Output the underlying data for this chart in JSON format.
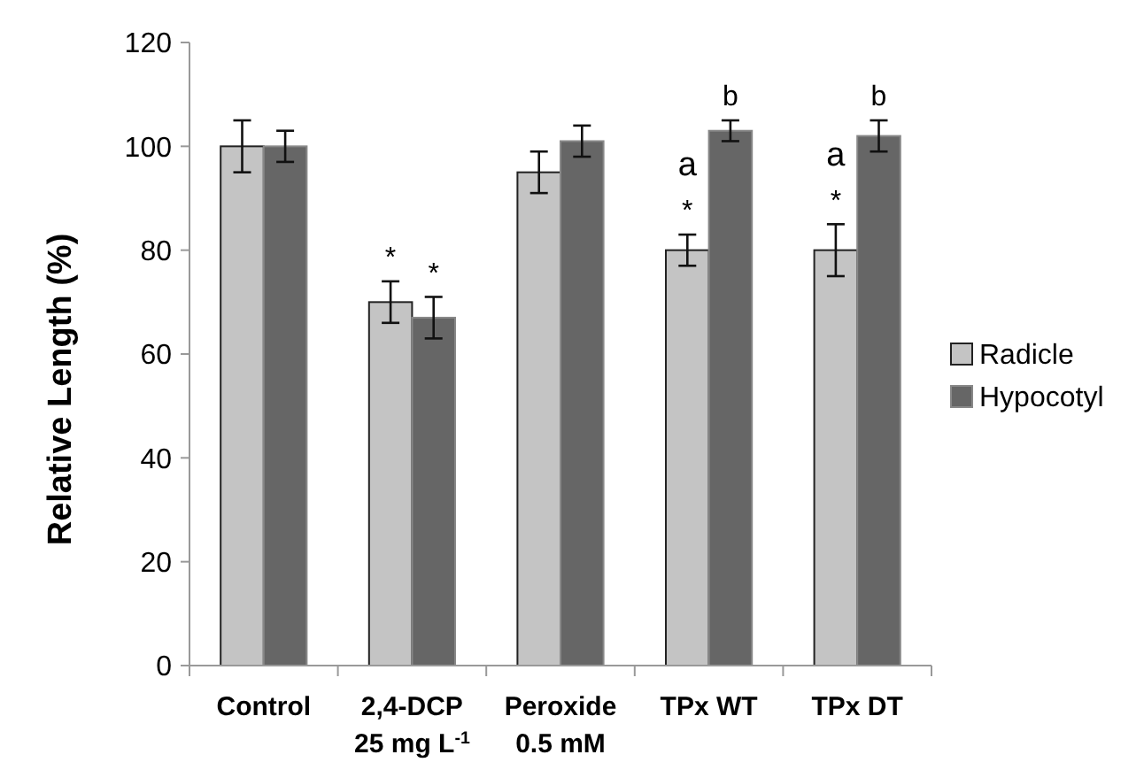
{
  "chart_data": {
    "type": "bar",
    "ylabel": "Relative Length (%)",
    "categories": [
      "Control",
      "2,4-DCP\n25 mg L$^{-1}$",
      "Peroxide\n0.5 mM",
      "TPx WT",
      "TPx DT"
    ],
    "series": [
      {
        "name": "Radicle",
        "color": "#c4c4c4",
        "values": [
          100,
          70,
          95,
          80,
          80
        ],
        "errors": [
          5,
          4,
          4,
          3,
          5
        ]
      },
      {
        "name": "Hypocotyl",
        "color": "#666666",
        "values": [
          100,
          67,
          101,
          103,
          102
        ],
        "errors": [
          3,
          4,
          3,
          2,
          3
        ]
      }
    ],
    "ylim": [
      0,
      120
    ],
    "yticks": [
      0,
      20,
      40,
      60,
      80,
      100,
      120
    ],
    "grid": false,
    "legend": "right",
    "annotations": [
      {
        "text": "*",
        "x": "2,4-DCP\n25 mg L$^{-1}$",
        "y": 70
      },
      {
        "text": "*",
        "x": "2,4-DCP\n25 mg L$^{-1}$",
        "y": 67
      },
      {
        "text": "*",
        "x": "TPx WT",
        "y": 80
      },
      {
        "text": "a",
        "x": "TPx WT",
        "y": 80
      },
      {
        "text": "b",
        "x": "TPx WT",
        "y": 103
      },
      {
        "text": "*",
        "x": "TPx DT",
        "y": 80
      },
      {
        "text": "a",
        "x": "TPx DT",
        "y": 80
      },
      {
        "text": "b",
        "x": "TPx DT",
        "y": 102
      }
    ]
  }
}
